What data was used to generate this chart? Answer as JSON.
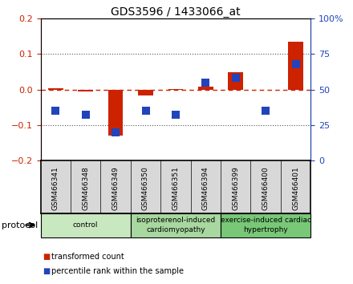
{
  "title": "GDS3596 / 1433066_at",
  "samples": [
    "GSM466341",
    "GSM466348",
    "GSM466349",
    "GSM466350",
    "GSM466351",
    "GSM466394",
    "GSM466399",
    "GSM466400",
    "GSM466401"
  ],
  "transformed_count": [
    0.004,
    -0.005,
    -0.13,
    -0.018,
    0.002,
    0.008,
    0.048,
    -0.002,
    0.135
  ],
  "percentile_rank": [
    35,
    32,
    20,
    35,
    32,
    55,
    58,
    35,
    68
  ],
  "ylim_left": [
    -0.2,
    0.2
  ],
  "ylim_right": [
    0,
    100
  ],
  "y_ticks_left": [
    -0.2,
    -0.1,
    0.0,
    0.1,
    0.2
  ],
  "y_ticks_right": [
    0,
    25,
    50,
    75,
    100
  ],
  "y_tick_labels_right": [
    "0",
    "25",
    "50",
    "75",
    "100%"
  ],
  "bar_color_red": "#cc2200",
  "bar_color_blue": "#2244bb",
  "zero_line_color": "#cc2200",
  "dotted_line_color": "#555555",
  "group_ranges": [
    [
      0,
      2,
      "control",
      "#c8e8c0"
    ],
    [
      3,
      5,
      "isoproterenol-induced\ncardiomyopathy",
      "#a8d8a0"
    ],
    [
      6,
      8,
      "exercise-induced cardiac\nhypertrophy",
      "#78c878"
    ]
  ],
  "legend_red_label": "transformed count",
  "legend_blue_label": "percentile rank within the sample",
  "protocol_label": "protocol",
  "bar_width": 0.5,
  "blue_marker_size": 7,
  "sample_box_color": "#d8d8d8"
}
